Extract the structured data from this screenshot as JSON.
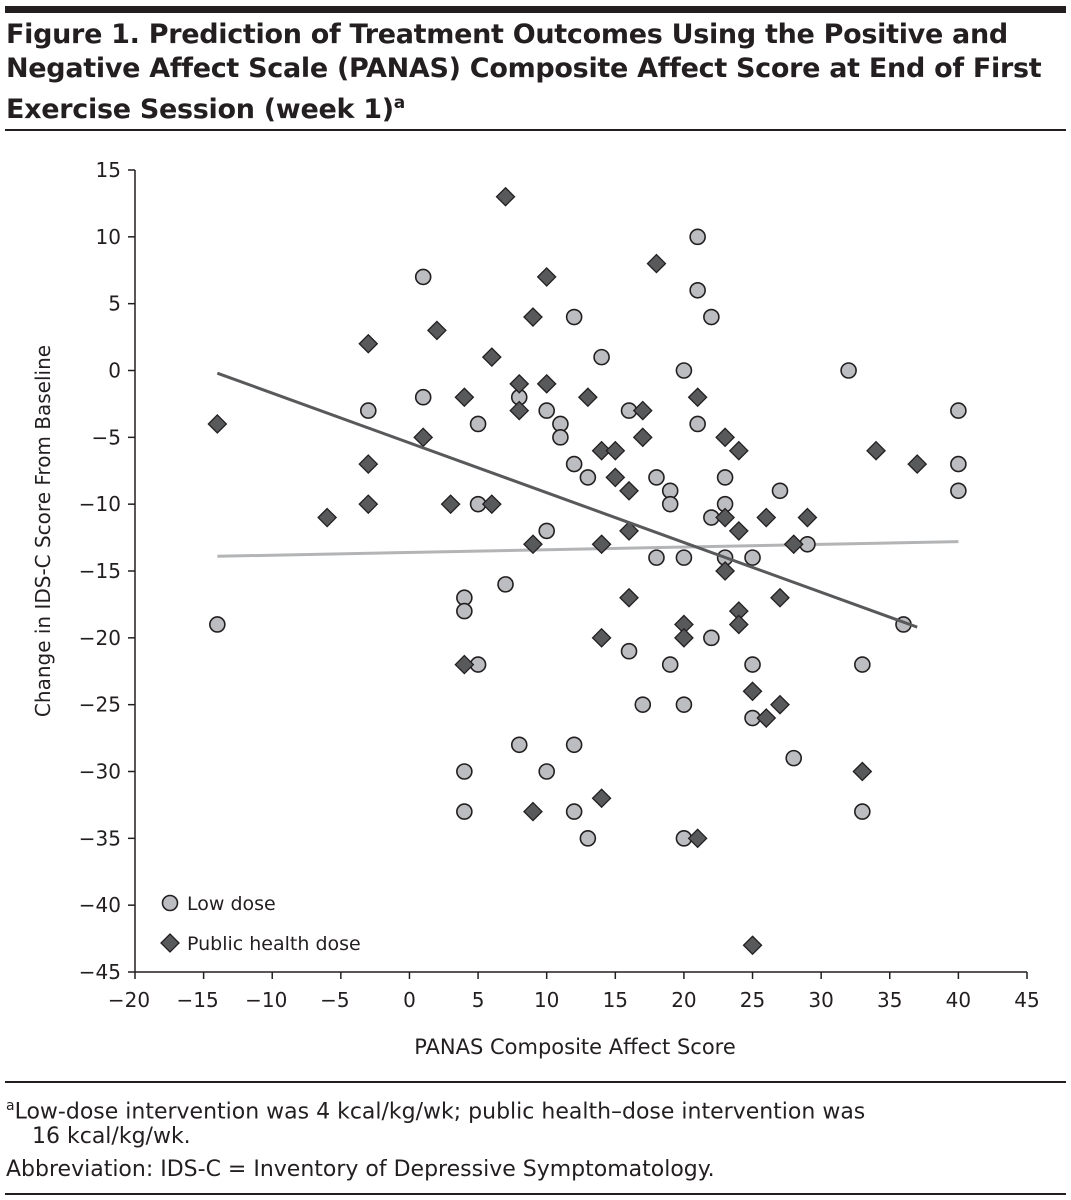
{
  "figure": {
    "title": "Figure 1. Prediction of Treatment Outcomes Using the Positive and Negative Affect Scale (PANAS) Composite Affect Score at End of First Exercise Session (week 1)",
    "title_superscript": "a",
    "footnote_marker": "a",
    "footnote_line1": "Low-dose intervention was 4 kcal/kg/wk; public health–dose intervention was",
    "footnote_line2": "16 kcal/kg/wk.",
    "abbreviation": "Abbreviation: IDS-C = Inventory of Depressive Symptomatology."
  },
  "chart_data": {
    "type": "scatter",
    "title": "",
    "xlabel": "PANAS Composite Affect Score",
    "ylabel": "Change in IDS-C Score From Baseline",
    "xlim": [
      -20,
      45
    ],
    "ylim": [
      -45,
      15
    ],
    "xticks": [
      -20,
      -15,
      -10,
      -5,
      0,
      5,
      10,
      15,
      20,
      25,
      30,
      35,
      40,
      45
    ],
    "yticks": [
      15,
      10,
      5,
      0,
      -5,
      -10,
      -15,
      -20,
      -25,
      -30,
      -35,
      -40,
      -45
    ],
    "grid": false,
    "legend_position": "bottom-left",
    "series": [
      {
        "name": "Low dose",
        "marker": "circle",
        "color": "#bcbdc0",
        "points": [
          [
            -14,
            -19
          ],
          [
            1,
            7
          ],
          [
            1,
            -2
          ],
          [
            -3,
            -3
          ],
          [
            4,
            -17
          ],
          [
            4,
            -18
          ],
          [
            4,
            -30
          ],
          [
            4,
            -33
          ],
          [
            5,
            -4
          ],
          [
            5,
            -10
          ],
          [
            5,
            -22
          ],
          [
            7,
            -16
          ],
          [
            8,
            -2
          ],
          [
            8,
            -28
          ],
          [
            10,
            -3
          ],
          [
            10,
            -12
          ],
          [
            10,
            -30
          ],
          [
            11,
            -4
          ],
          [
            11,
            -5
          ],
          [
            12,
            4
          ],
          [
            12,
            -7
          ],
          [
            12,
            -28
          ],
          [
            12,
            -33
          ],
          [
            13,
            -8
          ],
          [
            13,
            -35
          ],
          [
            14,
            1
          ],
          [
            16,
            -3
          ],
          [
            16,
            -21
          ],
          [
            17,
            -25
          ],
          [
            18,
            -8
          ],
          [
            18,
            -14
          ],
          [
            19,
            -9
          ],
          [
            19,
            -10
          ],
          [
            19,
            -22
          ],
          [
            20,
            0
          ],
          [
            20,
            -14
          ],
          [
            20,
            -25
          ],
          [
            20,
            -35
          ],
          [
            21,
            10
          ],
          [
            21,
            6
          ],
          [
            21,
            -4
          ],
          [
            22,
            4
          ],
          [
            22,
            -11
          ],
          [
            22,
            -20
          ],
          [
            23,
            -8
          ],
          [
            23,
            -10
          ],
          [
            23,
            -14
          ],
          [
            25,
            -14
          ],
          [
            25,
            -22
          ],
          [
            25,
            -26
          ],
          [
            27,
            -9
          ],
          [
            28,
            -29
          ],
          [
            29,
            -13
          ],
          [
            32,
            0
          ],
          [
            33,
            -22
          ],
          [
            33,
            -33
          ],
          [
            36,
            -19
          ],
          [
            40,
            -3
          ],
          [
            40,
            -7
          ],
          [
            40,
            -9
          ]
        ],
        "fit_line": {
          "x": [
            -14,
            40
          ],
          "y": [
            -13.9,
            -12.8
          ],
          "color": "#b3b4b6"
        }
      },
      {
        "name": "Public health dose",
        "marker": "diamond",
        "color": "#58595b",
        "points": [
          [
            -14,
            -4
          ],
          [
            -6,
            -11
          ],
          [
            -3,
            2
          ],
          [
            -3,
            -7
          ],
          [
            -3,
            -10
          ],
          [
            1,
            -5
          ],
          [
            2,
            3
          ],
          [
            3,
            -10
          ],
          [
            4,
            -2
          ],
          [
            4,
            -22
          ],
          [
            6,
            1
          ],
          [
            6,
            -10
          ],
          [
            7,
            13
          ],
          [
            8,
            -1
          ],
          [
            8,
            -3
          ],
          [
            9,
            4
          ],
          [
            9,
            -13
          ],
          [
            9,
            -33
          ],
          [
            10,
            7
          ],
          [
            10,
            -1
          ],
          [
            13,
            -2
          ],
          [
            14,
            -6
          ],
          [
            14,
            -13
          ],
          [
            14,
            -20
          ],
          [
            14,
            -32
          ],
          [
            15,
            -6
          ],
          [
            15,
            -8
          ],
          [
            16,
            -9
          ],
          [
            16,
            -12
          ],
          [
            16,
            -17
          ],
          [
            17,
            -3
          ],
          [
            17,
            -5
          ],
          [
            18,
            8
          ],
          [
            20,
            -19
          ],
          [
            20,
            -20
          ],
          [
            21,
            -2
          ],
          [
            21,
            -35
          ],
          [
            23,
            -5
          ],
          [
            23,
            -11
          ],
          [
            23,
            -15
          ],
          [
            24,
            -6
          ],
          [
            24,
            -12
          ],
          [
            24,
            -18
          ],
          [
            24,
            -19
          ],
          [
            25,
            -24
          ],
          [
            25,
            -43
          ],
          [
            26,
            -11
          ],
          [
            26,
            -26
          ],
          [
            27,
            -17
          ],
          [
            27,
            -25
          ],
          [
            28,
            -13
          ],
          [
            29,
            -11
          ],
          [
            33,
            -30
          ],
          [
            34,
            -6
          ],
          [
            37,
            -7
          ]
        ],
        "fit_line": {
          "x": [
            -14,
            37
          ],
          "y": [
            -0.2,
            -19.2
          ],
          "color": "#58595b"
        }
      }
    ]
  }
}
